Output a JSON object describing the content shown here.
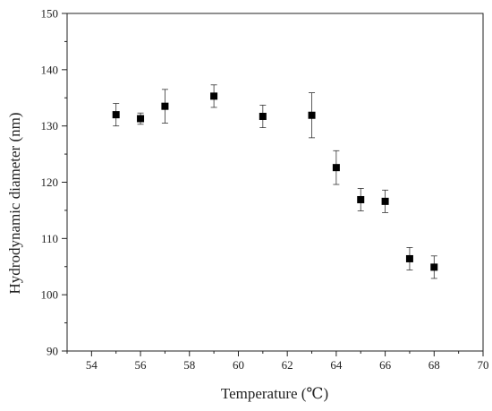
{
  "chart_data": {
    "type": "scatter",
    "title": "",
    "xlabel": "Temperature (℃)",
    "ylabel": "Hydrodynamic diameter (nm)",
    "xlim": [
      53,
      70
    ],
    "ylim": [
      90,
      150
    ],
    "x_ticks": [
      54,
      56,
      58,
      60,
      62,
      64,
      66,
      68,
      70
    ],
    "y_ticks": [
      90,
      100,
      110,
      120,
      130,
      140,
      150
    ],
    "grid": false,
    "legend": "none",
    "marker": "square",
    "color": "#000000",
    "series": [
      {
        "x": [
          55,
          56,
          57,
          59,
          61,
          63,
          64,
          65,
          66,
          67,
          68
        ],
        "y": [
          132.0,
          131.3,
          133.5,
          135.3,
          131.7,
          131.9,
          122.6,
          116.9,
          116.6,
          106.4,
          104.9
        ],
        "err": [
          2.0,
          1.0,
          3.0,
          2.0,
          2.0,
          4.0,
          3.0,
          2.0,
          2.0,
          2.0,
          2.0
        ]
      }
    ]
  }
}
